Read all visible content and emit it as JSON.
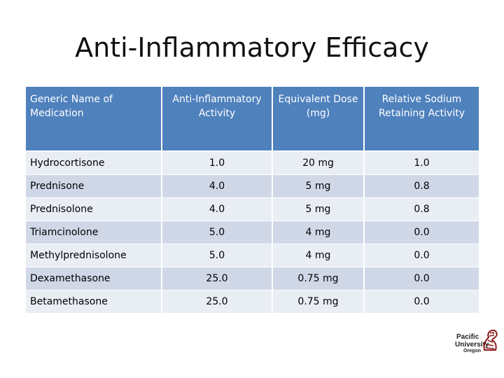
{
  "slide": {
    "title": "Anti-Inflammatory Efficacy"
  },
  "table": {
    "headers": [
      "Generic Name of Medication",
      "Anti-Inflammatory Activity",
      "Equivalent Dose (mg)",
      "Relative Sodium Retaining Activity"
    ],
    "rows": [
      [
        "Hydrocortisone",
        "1.0",
        "20 mg",
        "1.0"
      ],
      [
        "Prednisone",
        "4.0",
        "5 mg",
        "0.8"
      ],
      [
        "Prednisolone",
        "4.0",
        "5 mg",
        "0.8"
      ],
      [
        "Triamcinolone",
        "5.0",
        "4 mg",
        "0.0"
      ],
      [
        "Methylprednisolone",
        "5.0",
        "4 mg",
        "0.0"
      ],
      [
        "Dexamethasone",
        "25.0",
        "0.75 mg",
        "0.0"
      ],
      [
        "Betamethasone",
        "25.0",
        "0.75 mg",
        "0.0"
      ]
    ],
    "colors": {
      "header_bg": "#4f81bd",
      "row_light": "#e9edf4",
      "row_dark": "#d0d8e8"
    }
  },
  "logo": {
    "line1": "Pacific",
    "line2": "University",
    "line3": "Oregon",
    "icon": "boxer-mascot-icon",
    "color": "#8b1a1a"
  }
}
